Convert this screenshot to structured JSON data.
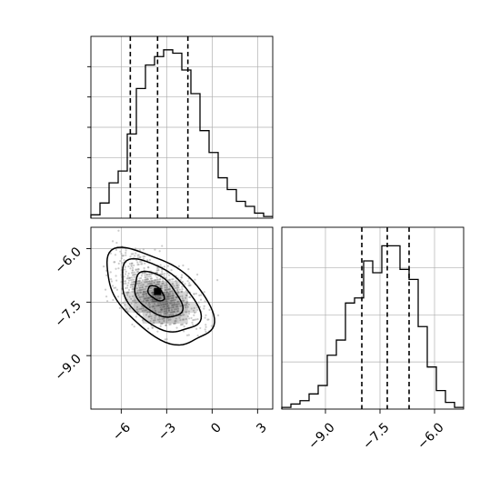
{
  "chart_data": [
    {
      "type": "histogram",
      "panel": "top-left marginal",
      "quantile_lines": [
        -5.4,
        -3.6,
        -1.6
      ],
      "bin_edges": [
        -8.0,
        -7.4,
        -6.8,
        -6.2,
        -5.6,
        -5.0,
        -4.4,
        -3.8,
        -3.2,
        -2.6,
        -2.0,
        -1.4,
        -0.8,
        -0.2,
        0.4,
        1.0,
        1.6,
        2.2,
        2.8,
        3.4,
        4.0
      ],
      "counts": [
        0.02,
        0.09,
        0.21,
        0.28,
        0.5,
        0.77,
        0.91,
        0.96,
        1.0,
        0.98,
        0.88,
        0.74,
        0.52,
        0.39,
        0.24,
        0.17,
        0.1,
        0.07,
        0.03,
        0.01
      ],
      "xlim": [
        -8.0,
        4.0
      ],
      "grid": true
    },
    {
      "type": "scatter+contour",
      "panel": "bottom-left joint",
      "xlim": [
        -8.0,
        4.0
      ],
      "ylim": [
        -10.5,
        -5.4
      ],
      "x_ticks": [
        "−6",
        "−3",
        "0",
        "3"
      ],
      "x_tick_values": [
        -6,
        -3,
        0,
        3
      ],
      "y_ticks": [
        "−6.0",
        "−7.5",
        "−9.0"
      ],
      "y_tick_values": [
        -6.0,
        -7.5,
        -9.0
      ],
      "peak": [
        -3.6,
        -7.2
      ],
      "contours": [
        {
          "level": 1,
          "cx": -3.5,
          "cy": -7.35,
          "rx": 3.6,
          "ry": 1.1,
          "tilt": -0.22
        },
        {
          "level": 2,
          "cx": -3.5,
          "cy": -7.35,
          "rx": 2.65,
          "ry": 0.85,
          "tilt": -0.22
        },
        {
          "level": 3,
          "cx": -3.6,
          "cy": -7.3,
          "rx": 1.6,
          "ry": 0.55,
          "tilt": -0.22
        },
        {
          "level": 4,
          "cx": -3.7,
          "cy": -7.25,
          "rx": 0.55,
          "ry": 0.18,
          "tilt": -0.22
        }
      ],
      "grid": true
    },
    {
      "type": "histogram",
      "panel": "bottom-right marginal",
      "quantile_lines": [
        -8.0,
        -7.3,
        -6.7
      ],
      "bin_edges": [
        -10.2,
        -9.95,
        -9.7,
        -9.45,
        -9.2,
        -8.95,
        -8.7,
        -8.45,
        -8.2,
        -7.95,
        -7.7,
        -7.45,
        -7.2,
        -6.95,
        -6.7,
        -6.45,
        -6.2,
        -5.95,
        -5.7,
        -5.45,
        -5.2
      ],
      "counts": [
        0.01,
        0.03,
        0.05,
        0.09,
        0.14,
        0.32,
        0.41,
        0.63,
        0.66,
        0.88,
        0.81,
        0.97,
        0.97,
        0.83,
        0.77,
        0.49,
        0.25,
        0.11,
        0.04,
        0.01
      ],
      "xlim": [
        -10.2,
        -5.2
      ],
      "x_ticks": [
        "−9.0",
        "−7.5",
        "−6.0"
      ],
      "x_tick_values": [
        -9.0,
        -7.5,
        -6.0
      ],
      "grid": true
    }
  ]
}
